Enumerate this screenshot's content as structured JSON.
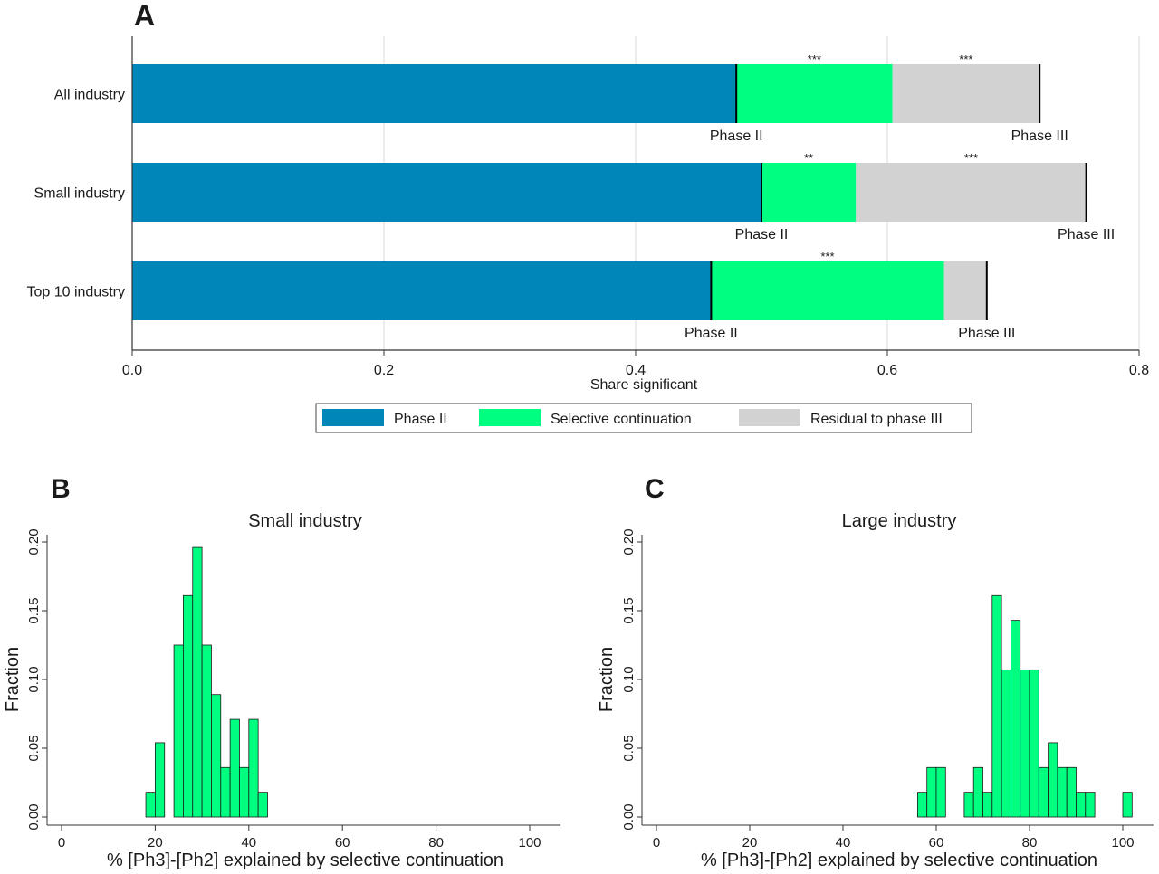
{
  "colors": {
    "phase2": "#0086B8",
    "selective": "#00FF80",
    "residual": "#D2D2D2",
    "hist_fill": "#00FF80",
    "grid": "#DADADA",
    "axis": "#333333"
  },
  "chart_data": [
    {
      "panel": "A",
      "type": "bar",
      "orientation": "horizontal",
      "stacked": true,
      "categories": [
        "All industry",
        "Small industry",
        "Top 10 industry"
      ],
      "series": [
        {
          "name": "Phase II",
          "values": [
            0.48,
            0.5,
            0.46
          ]
        },
        {
          "name": "Selective continuation",
          "values": [
            0.124,
            0.075,
            0.185
          ]
        },
        {
          "name": "Residual to phase III",
          "values": [
            0.117,
            0.183,
            0.034
          ]
        }
      ],
      "significance": [
        {
          "category": "All industry",
          "segment": "Selective continuation",
          "stars": "***"
        },
        {
          "category": "All industry",
          "segment": "Residual to phase III",
          "stars": "***"
        },
        {
          "category": "Small industry",
          "segment": "Selective continuation",
          "stars": "**"
        },
        {
          "category": "Small industry",
          "segment": "Residual to phase III",
          "stars": "***"
        },
        {
          "category": "Top 10 industry",
          "segment": "Selective continuation",
          "stars": "***"
        }
      ],
      "marker_labels": {
        "phase2": "Phase II",
        "phase3": "Phase III"
      },
      "xlabel": "Share significant",
      "ylabel": "",
      "xlim": [
        0,
        0.8
      ],
      "xticks": [
        "0.0",
        "0.2",
        "0.4",
        "0.6",
        "0.8"
      ],
      "xtick_values": [
        0,
        0.2,
        0.4,
        0.6,
        0.8
      ],
      "grid": true,
      "legend": {
        "placement": "bottom-center",
        "entries": [
          "Phase II",
          "Selective continuation",
          "Residual to phase III"
        ]
      }
    },
    {
      "panel": "B",
      "type": "bar",
      "subtype": "histogram",
      "title": "Small industry",
      "xlabel": "% [Ph3]-[Ph2] explained by selective continuation",
      "ylabel": "Fraction",
      "xlim": [
        0,
        100
      ],
      "ylim": [
        0,
        0.2
      ],
      "xticks": [
        "0",
        "20",
        "40",
        "60",
        "80",
        "100"
      ],
      "yticks": [
        "0.00",
        "0.05",
        "0.10",
        "0.15",
        "0.20"
      ],
      "bin_width": 2,
      "bins": [
        {
          "x": 18,
          "value": 0.018
        },
        {
          "x": 20,
          "value": 0.054
        },
        {
          "x": 24,
          "value": 0.125
        },
        {
          "x": 26,
          "value": 0.161
        },
        {
          "x": 28,
          "value": 0.196
        },
        {
          "x": 30,
          "value": 0.125
        },
        {
          "x": 32,
          "value": 0.089
        },
        {
          "x": 34,
          "value": 0.036
        },
        {
          "x": 36,
          "value": 0.071
        },
        {
          "x": 38,
          "value": 0.036
        },
        {
          "x": 40,
          "value": 0.071
        },
        {
          "x": 42,
          "value": 0.018
        }
      ]
    },
    {
      "panel": "C",
      "type": "bar",
      "subtype": "histogram",
      "title": "Large industry",
      "xlabel": "% [Ph3]-[Ph2] explained by selective continuation",
      "ylabel": "Fraction",
      "xlim": [
        0,
        100
      ],
      "ylim": [
        0,
        0.2
      ],
      "xticks": [
        "0",
        "20",
        "40",
        "60",
        "80",
        "100"
      ],
      "yticks": [
        "0.00",
        "0.05",
        "0.10",
        "0.15",
        "0.20"
      ],
      "bin_width": 2,
      "bins": [
        {
          "x": 56,
          "value": 0.018
        },
        {
          "x": 58,
          "value": 0.036
        },
        {
          "x": 60,
          "value": 0.036
        },
        {
          "x": 66,
          "value": 0.018
        },
        {
          "x": 68,
          "value": 0.036
        },
        {
          "x": 70,
          "value": 0.018
        },
        {
          "x": 72,
          "value": 0.161
        },
        {
          "x": 74,
          "value": 0.107
        },
        {
          "x": 76,
          "value": 0.143
        },
        {
          "x": 78,
          "value": 0.107
        },
        {
          "x": 80,
          "value": 0.107
        },
        {
          "x": 82,
          "value": 0.036
        },
        {
          "x": 84,
          "value": 0.054
        },
        {
          "x": 86,
          "value": 0.036
        },
        {
          "x": 88,
          "value": 0.036
        },
        {
          "x": 90,
          "value": 0.018
        },
        {
          "x": 92,
          "value": 0.018
        },
        {
          "x": 100,
          "value": 0.018
        }
      ]
    }
  ],
  "panel_letters": [
    "A",
    "B",
    "C"
  ]
}
